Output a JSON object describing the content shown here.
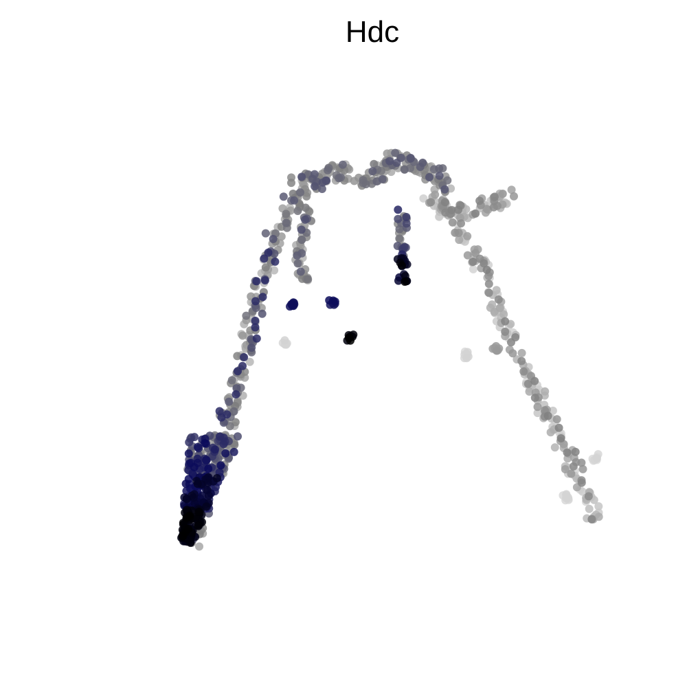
{
  "chart_data": {
    "type": "scatter",
    "title": "Hdc",
    "xlabel": "",
    "ylabel": "",
    "grid": false,
    "axes_visible": false,
    "legend": false,
    "xlim": [
      0,
      100
    ],
    "ylim": [
      0,
      100
    ],
    "expression_color_scale": {
      "low": "#e0e0e0",
      "mid": "#7f7f7f",
      "high": "#0a0a5a",
      "max": "#000000"
    },
    "point_count": 1110,
    "trajectory": [
      {
        "name": "left_arm_lower",
        "points": [
          [
            20,
            18
          ],
          [
            21,
            22
          ],
          [
            22,
            26
          ],
          [
            23,
            30
          ],
          [
            24,
            33
          ],
          [
            25,
            36
          ],
          [
            26,
            40
          ],
          [
            27,
            44
          ],
          [
            28,
            48
          ],
          [
            29,
            52
          ],
          [
            30,
            56
          ],
          [
            31,
            60
          ],
          [
            32,
            64
          ],
          [
            33,
            68
          ],
          [
            34,
            72
          ],
          [
            36,
            76
          ],
          [
            38,
            79
          ],
          [
            41,
            81
          ],
          [
            44,
            82
          ]
        ],
        "spread": 1.4
      },
      {
        "name": "top_arch",
        "points": [
          [
            38,
            81
          ],
          [
            41,
            82
          ],
          [
            44,
            83
          ],
          [
            47,
            83
          ],
          [
            50,
            82
          ],
          [
            52,
            83
          ],
          [
            54,
            85
          ],
          [
            56,
            85
          ],
          [
            58,
            84
          ],
          [
            60,
            83
          ],
          [
            62,
            82
          ],
          [
            63,
            80
          ]
        ],
        "spread": 1.5
      },
      {
        "name": "right_branch",
        "points": [
          [
            60,
            78
          ],
          [
            63,
            77
          ],
          [
            66,
            76
          ],
          [
            69,
            77
          ],
          [
            72,
            78
          ],
          [
            74,
            79
          ]
        ],
        "spread": 1.3
      },
      {
        "name": "right_arm",
        "points": [
          [
            62,
            78
          ],
          [
            65,
            74
          ],
          [
            68,
            69
          ],
          [
            70,
            65
          ],
          [
            72,
            60
          ],
          [
            74,
            56
          ],
          [
            76,
            51
          ],
          [
            78,
            46
          ],
          [
            80,
            42
          ],
          [
            82,
            38
          ],
          [
            84,
            34
          ],
          [
            86,
            30
          ],
          [
            88,
            26
          ],
          [
            89,
            22
          ]
        ],
        "spread": 1.2
      },
      {
        "name": "inner_branch",
        "points": [
          [
            56,
            76
          ],
          [
            56,
            72
          ],
          [
            56,
            68
          ],
          [
            56,
            64
          ]
        ],
        "spread": 0.9
      },
      {
        "name": "inner_left_branch",
        "points": [
          [
            40,
            77
          ],
          [
            39,
            72
          ],
          [
            38,
            68
          ],
          [
            39,
            64
          ]
        ],
        "spread": 0.9
      }
    ],
    "dense_cluster": {
      "name": "bottom_left_cluster",
      "x_range": [
        18,
        28
      ],
      "y_range": [
        18,
        37
      ]
    },
    "satellite_clusters": [
      {
        "x": 47,
        "y": 54,
        "expression": "max"
      },
      {
        "x": 37,
        "y": 60,
        "expression": "high"
      },
      {
        "x": 44,
        "y": 60,
        "expression": "high"
      },
      {
        "x": 36,
        "y": 53,
        "expression": "low"
      },
      {
        "x": 67,
        "y": 51,
        "expression": "low"
      },
      {
        "x": 72,
        "y": 52,
        "expression": "mid"
      },
      {
        "x": 84,
        "y": 26,
        "expression": "low"
      },
      {
        "x": 89,
        "y": 33,
        "expression": "low"
      }
    ]
  }
}
